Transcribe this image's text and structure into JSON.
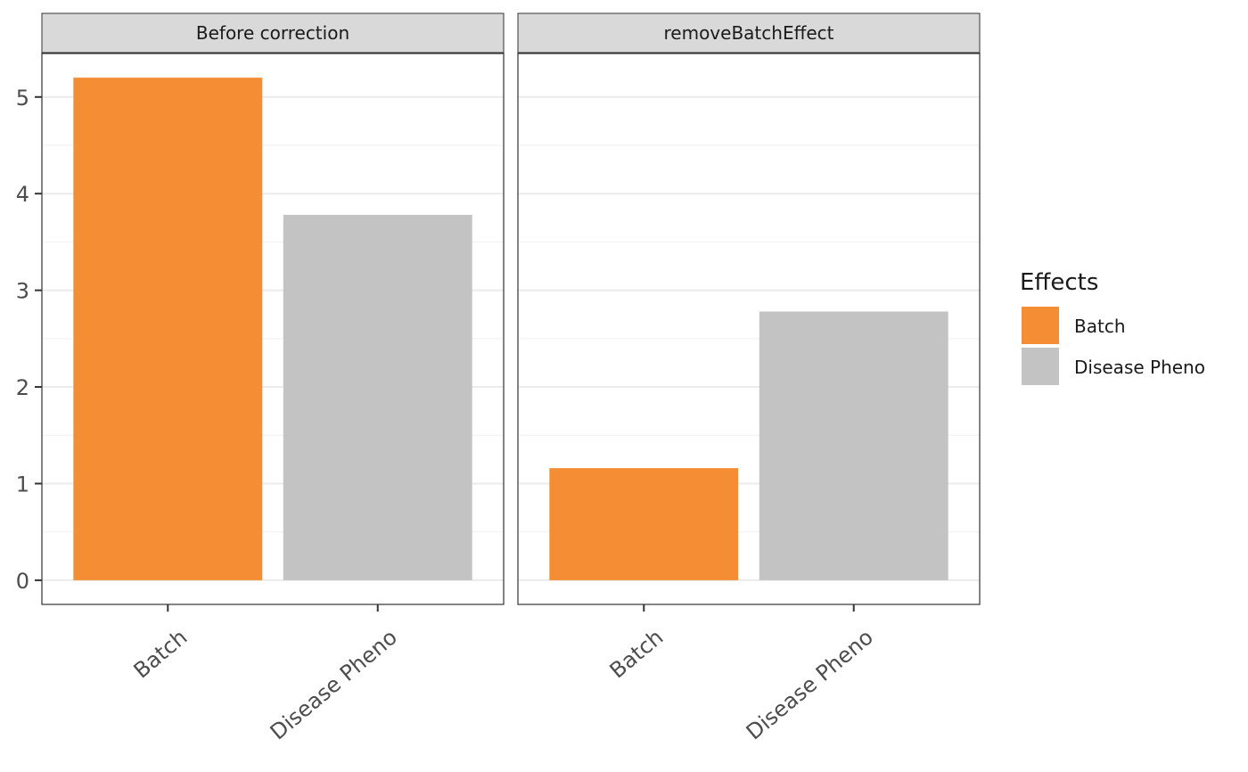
{
  "chart_data": {
    "type": "bar",
    "facets": [
      {
        "title": "Before correction",
        "categories": [
          "Batch",
          "Disease Pheno"
        ],
        "values": [
          5.2,
          3.78
        ]
      },
      {
        "title": "removeBatchEffect",
        "categories": [
          "Batch",
          "Disease Pheno"
        ],
        "values": [
          1.16,
          2.78
        ]
      }
    ],
    "ylim": [
      -0.25,
      5.45
    ],
    "y_ticks": [
      0,
      1,
      2,
      3,
      4,
      5
    ],
    "grid": true,
    "colors": {
      "Batch": "#F58D34",
      "Disease Pheno": "#C3C3C3"
    },
    "legend": {
      "title": "Effects",
      "placement": "right",
      "items": [
        {
          "label": "Batch",
          "color": "#F58D34"
        },
        {
          "label": "Disease Pheno",
          "color": "#C3C3C3"
        }
      ]
    }
  }
}
